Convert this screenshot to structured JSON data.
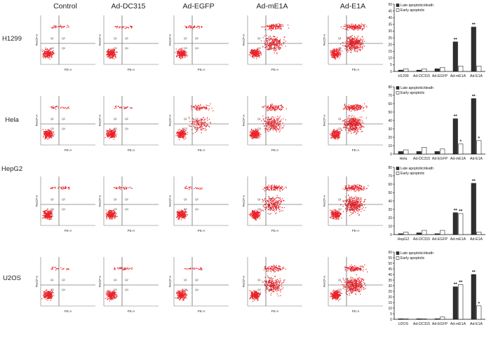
{
  "columns": [
    "Control",
    "Ad-DC315",
    "Ad-EGFP",
    "Ad-mE1A",
    "Ad-E1A"
  ],
  "rows": [
    "H1299",
    "Hela",
    "HepG2",
    "U2OS"
  ],
  "flow_axes": {
    "x_label": "PE-A",
    "y_label": "PerCP-A",
    "quadrants": [
      "Q1",
      "Q2",
      "Q3",
      "Q4"
    ]
  },
  "colors": {
    "dots": "#e8242a",
    "gate": "#3c3c3c",
    "late_bar": "#2f2f2f",
    "early_bar": "#ffffff"
  },
  "chart_data": [
    {
      "type": "bar",
      "row": "H1299",
      "categories": [
        "H1299",
        "Ad-DC315",
        "Ad-EGFP",
        "Ad-mE1A",
        "Ad-E1A"
      ],
      "series": [
        {
          "name": "Late apoptotic/death",
          "values": [
            1,
            1,
            2,
            22,
            33
          ]
        },
        {
          "name": "Early apoptotic",
          "values": [
            2,
            2,
            3,
            4,
            4
          ]
        }
      ],
      "ylim": [
        0,
        50
      ],
      "yticks": [
        "0",
        "5",
        "10",
        "15",
        "20",
        "25",
        "30",
        "35",
        "40",
        "45",
        "50"
      ],
      "annotations": [
        {
          "category": "Ad-mE1A",
          "series": 0,
          "text": "**"
        },
        {
          "category": "Ad-E1A",
          "series": 0,
          "text": "**"
        }
      ],
      "legend": "top-left"
    },
    {
      "type": "bar",
      "row": "Hela",
      "categories": [
        "Hela",
        "Ad-DC315",
        "Ad-EGFP",
        "Ad-mE1A",
        "Ad-E1A"
      ],
      "series": [
        {
          "name": "Late apoptotic/death",
          "values": [
            3,
            3,
            3,
            42,
            66
          ]
        },
        {
          "name": "Early apoptotic",
          "values": [
            5,
            8,
            6,
            12,
            16
          ]
        }
      ],
      "ylim": [
        0,
        80
      ],
      "yticks": [
        "0",
        "10",
        "20",
        "30",
        "40",
        "50",
        "60",
        "70",
        "80"
      ],
      "annotations": [
        {
          "category": "Ad-mE1A",
          "series": 0,
          "text": "**"
        },
        {
          "category": "Ad-mE1A",
          "series": 1,
          "text": "*"
        },
        {
          "category": "Ad-E1A",
          "series": 0,
          "text": "**"
        },
        {
          "category": "Ad-E1A",
          "series": 1,
          "text": "*"
        }
      ],
      "legend": "top-left"
    },
    {
      "type": "bar",
      "row": "HepG2",
      "categories": [
        "HepG2",
        "Ad-DC315",
        "Ad-EGFP",
        "Ad-mE1A",
        "Ad-E1A"
      ],
      "series": [
        {
          "name": "Late apoptotic/death",
          "values": [
            1,
            2,
            1,
            26,
            61
          ]
        },
        {
          "name": "Early apoptotic",
          "values": [
            3,
            5,
            5,
            25,
            3
          ]
        }
      ],
      "ylim": [
        0,
        80
      ],
      "yticks": [
        "0",
        "10",
        "20",
        "30",
        "40",
        "50",
        "60",
        "70",
        "80"
      ],
      "annotations": [
        {
          "category": "Ad-mE1A",
          "series": 0,
          "text": "**"
        },
        {
          "category": "Ad-mE1A",
          "series": 1,
          "text": "**"
        },
        {
          "category": "Ad-E1A",
          "series": 0,
          "text": "**"
        }
      ],
      "legend": "top-left"
    },
    {
      "type": "bar",
      "row": "U2OS",
      "categories": [
        "U2OS",
        "Ad-DC315",
        "Ad-EGFP",
        "Ad-mE1A",
        "Ad-E1A"
      ],
      "series": [
        {
          "name": "Late apoptotic/death",
          "values": [
            0.5,
            0.5,
            0.5,
            29,
            40
          ]
        },
        {
          "name": "Early apoptotic",
          "values": [
            0.5,
            0.5,
            2,
            31,
            12
          ]
        }
      ],
      "ylim": [
        0,
        60
      ],
      "yticks": [
        "0",
        "5",
        "10",
        "15",
        "20",
        "25",
        "30",
        "35",
        "40",
        "45",
        "50",
        "55",
        "60"
      ],
      "annotations": [
        {
          "category": "Ad-mE1A",
          "series": 0,
          "text": "**"
        },
        {
          "category": "Ad-mE1A",
          "series": 1,
          "text": "**"
        },
        {
          "category": "Ad-E1A",
          "series": 0,
          "text": "**"
        },
        {
          "category": "Ad-E1A",
          "series": 1,
          "text": "*"
        }
      ],
      "legend": "top-left"
    }
  ]
}
